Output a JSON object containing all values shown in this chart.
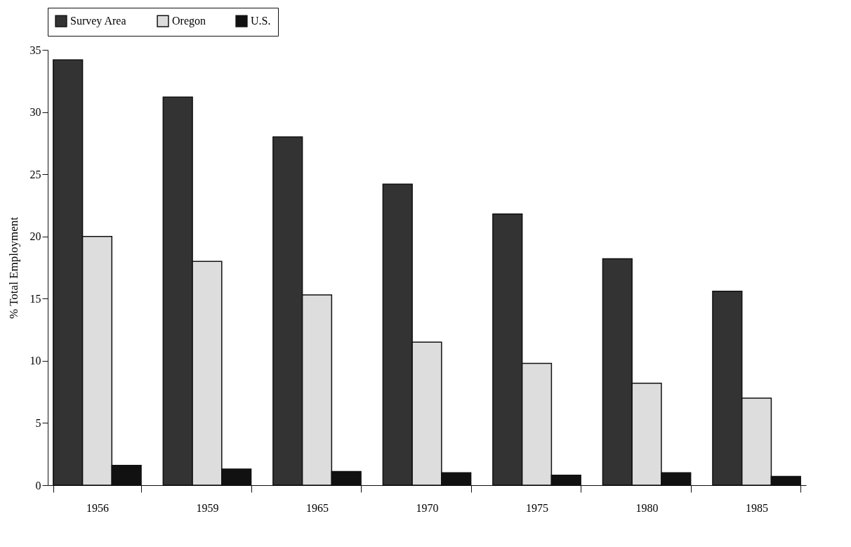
{
  "chart_data": {
    "type": "bar",
    "ylabel": "% Total Employment",
    "categories": [
      "1956",
      "1959",
      "1965",
      "1970",
      "1975",
      "1980",
      "1985"
    ],
    "series": [
      {
        "name": "Survey Area",
        "color": "#333333",
        "values": [
          34.2,
          31.2,
          28.0,
          24.2,
          21.8,
          18.2,
          15.6
        ]
      },
      {
        "name": "Oregon",
        "color": "#dddddd",
        "values": [
          20.0,
          18.0,
          15.3,
          11.5,
          9.8,
          8.2,
          7.0
        ]
      },
      {
        "name": "U.S.",
        "color": "#111111",
        "values": [
          1.6,
          1.3,
          1.1,
          1.0,
          0.8,
          1.0,
          0.7
        ]
      }
    ],
    "ylim": [
      0,
      35
    ],
    "yticks": [
      0,
      5,
      10,
      15,
      20,
      25,
      30,
      35
    ],
    "grid": false,
    "legend": "top"
  }
}
